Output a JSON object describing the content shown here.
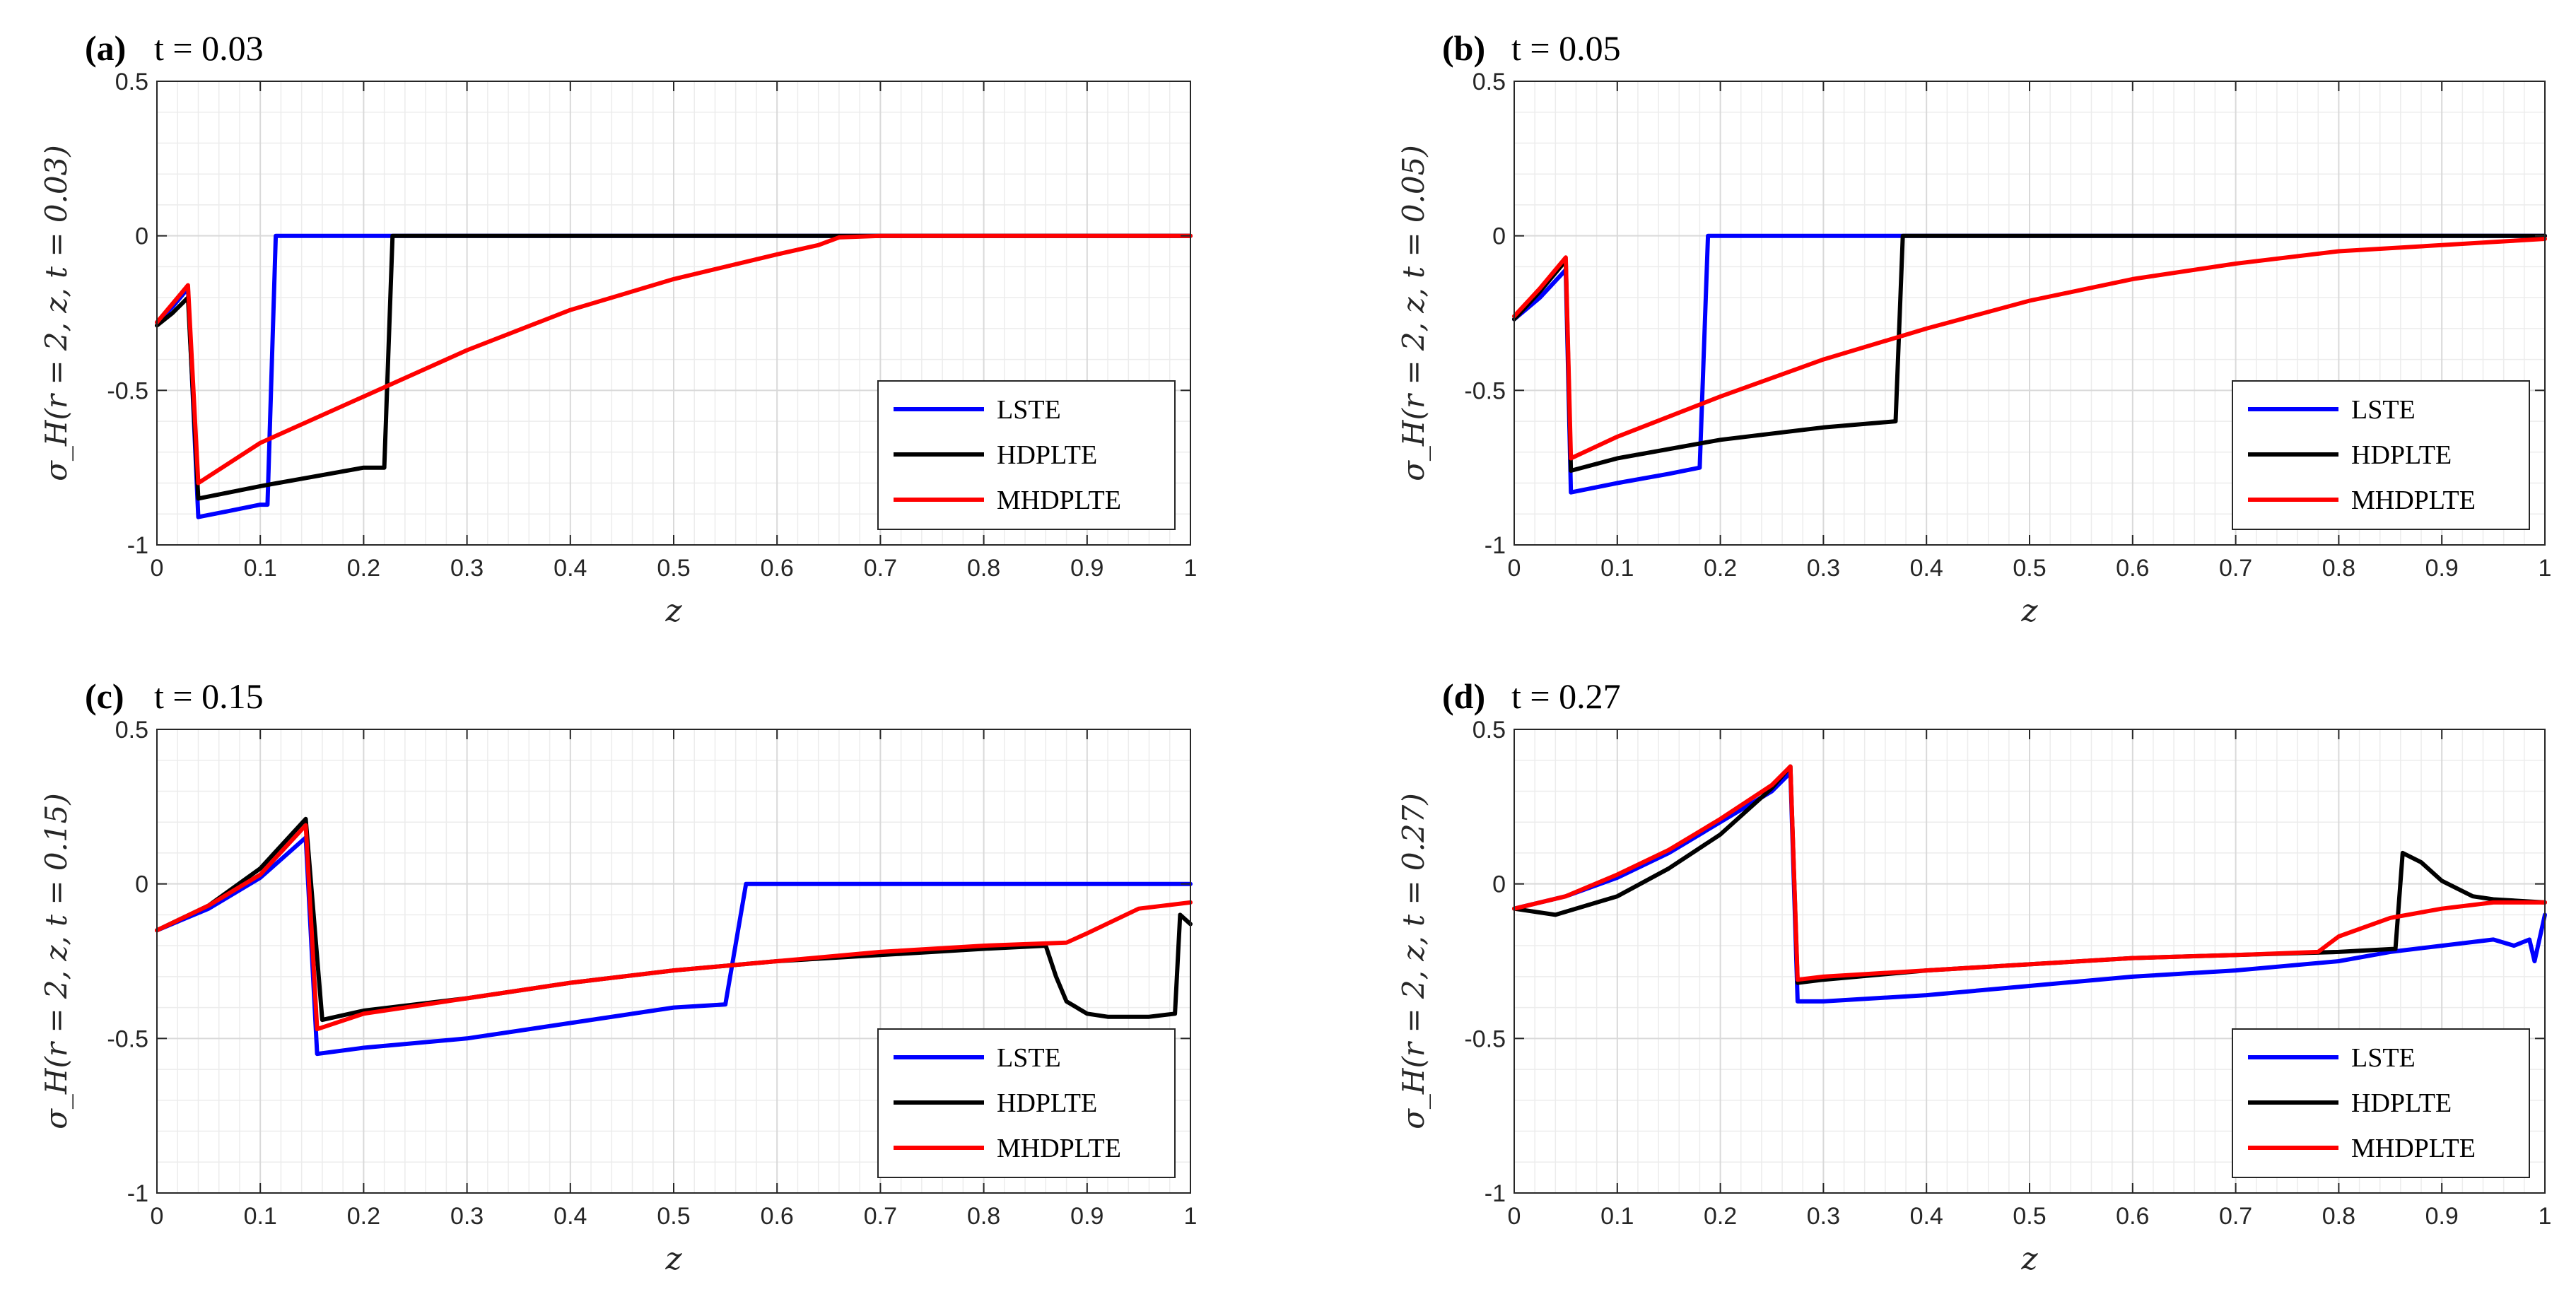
{
  "chart_data": [
    {
      "type": "line",
      "panel": "(a)",
      "title": "t = 0.03",
      "xlabel": "z",
      "ylabel": "σ_H(r = 2, z, t = 0.03)",
      "xlim": [
        0,
        1
      ],
      "ylim": [
        -1,
        0.5
      ],
      "xticks": [
        "0",
        "0.1",
        "0.2",
        "0.3",
        "0.4",
        "0.5",
        "0.6",
        "0.7",
        "0.8",
        "0.9",
        "1"
      ],
      "yticks": [
        "0.5",
        "0",
        "-0.5",
        "-1"
      ],
      "grid": true,
      "legend": "bottom-right",
      "series": [
        {
          "name": "LSTE",
          "color": "#0000ff",
          "x": [
            0,
            0.015,
            0.03,
            0.04,
            0.07,
            0.1,
            0.107,
            0.115,
            0.2,
            0.4,
            0.6,
            0.8,
            1
          ],
          "y": [
            -0.28,
            -0.23,
            -0.17,
            -0.91,
            -0.89,
            -0.87,
            -0.87,
            0,
            0,
            0,
            0,
            0,
            0
          ]
        },
        {
          "name": "HDPLTE",
          "color": "#000000",
          "x": [
            0,
            0.015,
            0.03,
            0.04,
            0.1,
            0.15,
            0.2,
            0.22,
            0.228,
            0.4,
            0.6,
            0.8,
            1
          ],
          "y": [
            -0.29,
            -0.25,
            -0.2,
            -0.85,
            -0.81,
            -0.78,
            -0.75,
            -0.75,
            0,
            0,
            0,
            0,
            0
          ]
        },
        {
          "name": "MHDPLTE",
          "color": "#ff0000",
          "x": [
            0,
            0.015,
            0.03,
            0.04,
            0.1,
            0.2,
            0.3,
            0.4,
            0.5,
            0.6,
            0.64,
            0.66,
            0.7,
            0.8,
            1
          ],
          "y": [
            -0.28,
            -0.22,
            -0.16,
            -0.8,
            -0.67,
            -0.52,
            -0.37,
            -0.24,
            -0.14,
            -0.06,
            -0.03,
            -0.005,
            0,
            0,
            0
          ]
        }
      ]
    },
    {
      "type": "line",
      "panel": "(b)",
      "title": "t = 0.05",
      "xlabel": "z",
      "ylabel": "σ_H(r = 2, z, t = 0.05)",
      "xlim": [
        0,
        1
      ],
      "ylim": [
        -1,
        0.5
      ],
      "xticks": [
        "0",
        "0.1",
        "0.2",
        "0.3",
        "0.4",
        "0.5",
        "0.6",
        "0.7",
        "0.8",
        "0.9",
        "1"
      ],
      "yticks": [
        "0.5",
        "0",
        "-0.5",
        "-1"
      ],
      "grid": true,
      "legend": "bottom-right",
      "series": [
        {
          "name": "LSTE",
          "color": "#0000ff",
          "x": [
            0,
            0.025,
            0.05,
            0.055,
            0.1,
            0.15,
            0.18,
            0.188,
            0.2,
            0.4,
            0.6,
            0.8,
            1
          ],
          "y": [
            -0.27,
            -0.2,
            -0.11,
            -0.83,
            -0.8,
            -0.77,
            -0.75,
            0,
            0,
            0,
            0,
            0,
            0
          ]
        },
        {
          "name": "HDPLTE",
          "color": "#000000",
          "x": [
            0,
            0.025,
            0.05,
            0.055,
            0.1,
            0.2,
            0.3,
            0.37,
            0.377,
            0.4,
            0.6,
            0.8,
            1
          ],
          "y": [
            -0.27,
            -0.18,
            -0.08,
            -0.76,
            -0.72,
            -0.66,
            -0.62,
            -0.6,
            0,
            0,
            0,
            0,
            0
          ]
        },
        {
          "name": "MHDPLTE",
          "color": "#ff0000",
          "x": [
            0,
            0.025,
            0.05,
            0.055,
            0.1,
            0.2,
            0.3,
            0.4,
            0.5,
            0.6,
            0.7,
            0.8,
            0.9,
            0.95,
            1
          ],
          "y": [
            -0.26,
            -0.17,
            -0.07,
            -0.72,
            -0.65,
            -0.52,
            -0.4,
            -0.3,
            -0.21,
            -0.14,
            -0.09,
            -0.05,
            -0.03,
            -0.02,
            -0.01
          ]
        }
      ]
    },
    {
      "type": "line",
      "panel": "(c)",
      "title": "t = 0.15",
      "xlabel": "z",
      "ylabel": "σ_H(r = 2, z, t = 0.15)",
      "xlim": [
        0,
        1
      ],
      "ylim": [
        -1,
        0.5
      ],
      "xticks": [
        "0",
        "0.1",
        "0.2",
        "0.3",
        "0.4",
        "0.5",
        "0.6",
        "0.7",
        "0.8",
        "0.9",
        "1"
      ],
      "yticks": [
        "0.5",
        "0",
        "-0.5",
        "-1"
      ],
      "grid": true,
      "legend": "bottom-right",
      "series": [
        {
          "name": "LSTE",
          "color": "#0000ff",
          "x": [
            0,
            0.05,
            0.1,
            0.144,
            0.155,
            0.2,
            0.3,
            0.4,
            0.5,
            0.55,
            0.57,
            0.6,
            0.8,
            1
          ],
          "y": [
            -0.15,
            -0.08,
            0.02,
            0.15,
            -0.55,
            -0.53,
            -0.5,
            -0.45,
            -0.4,
            -0.39,
            0,
            0,
            0,
            0
          ]
        },
        {
          "name": "HDPLTE",
          "color": "#000000",
          "x": [
            0,
            0.05,
            0.1,
            0.144,
            0.16,
            0.2,
            0.3,
            0.4,
            0.5,
            0.6,
            0.7,
            0.8,
            0.86,
            0.87,
            0.88,
            0.9,
            0.92,
            0.96,
            0.985,
            0.99,
            1
          ],
          "y": [
            -0.15,
            -0.07,
            0.05,
            0.21,
            -0.44,
            -0.41,
            -0.37,
            -0.32,
            -0.28,
            -0.25,
            -0.23,
            -0.21,
            -0.2,
            -0.3,
            -0.38,
            -0.42,
            -0.43,
            -0.43,
            -0.42,
            -0.1,
            -0.13
          ]
        },
        {
          "name": "MHDPLTE",
          "color": "#ff0000",
          "x": [
            0,
            0.05,
            0.1,
            0.144,
            0.155,
            0.2,
            0.3,
            0.4,
            0.5,
            0.6,
            0.7,
            0.8,
            0.88,
            0.9,
            0.95,
            1
          ],
          "y": [
            -0.15,
            -0.07,
            0.03,
            0.19,
            -0.47,
            -0.42,
            -0.37,
            -0.32,
            -0.28,
            -0.25,
            -0.22,
            -0.2,
            -0.19,
            -0.16,
            -0.08,
            -0.06
          ]
        }
      ]
    },
    {
      "type": "line",
      "panel": "(d)",
      "title": "t = 0.27",
      "xlabel": "z",
      "ylabel": "σ_H(r = 2, z, t = 0.27)",
      "xlim": [
        0,
        1
      ],
      "ylim": [
        -1,
        0.5
      ],
      "xticks": [
        "0",
        "0.1",
        "0.2",
        "0.3",
        "0.4",
        "0.5",
        "0.6",
        "0.7",
        "0.8",
        "0.9",
        "1"
      ],
      "yticks": [
        "0.5",
        "0",
        "-0.5",
        "-1"
      ],
      "grid": true,
      "legend": "bottom-right",
      "series": [
        {
          "name": "LSTE",
          "color": "#0000ff",
          "x": [
            0,
            0.05,
            0.1,
            0.15,
            0.2,
            0.25,
            0.268,
            0.275,
            0.3,
            0.4,
            0.5,
            0.6,
            0.7,
            0.8,
            0.85,
            0.9,
            0.95,
            0.97,
            0.985,
            0.99,
            1
          ],
          "y": [
            -0.08,
            -0.04,
            0.02,
            0.1,
            0.2,
            0.3,
            0.36,
            -0.38,
            -0.38,
            -0.36,
            -0.33,
            -0.3,
            -0.28,
            -0.25,
            -0.22,
            -0.2,
            -0.18,
            -0.2,
            -0.18,
            -0.25,
            -0.1
          ]
        },
        {
          "name": "HDPLTE",
          "color": "#000000",
          "x": [
            0,
            0.04,
            0.1,
            0.15,
            0.2,
            0.25,
            0.268,
            0.275,
            0.3,
            0.4,
            0.5,
            0.6,
            0.7,
            0.8,
            0.855,
            0.862,
            0.88,
            0.9,
            0.93,
            0.95,
            1
          ],
          "y": [
            -0.08,
            -0.1,
            -0.04,
            0.05,
            0.16,
            0.31,
            0.38,
            -0.32,
            -0.31,
            -0.28,
            -0.26,
            -0.24,
            -0.23,
            -0.22,
            -0.21,
            0.1,
            0.07,
            0.01,
            -0.04,
            -0.05,
            -0.06
          ]
        },
        {
          "name": "MHDPLTE",
          "color": "#ff0000",
          "x": [
            0,
            0.05,
            0.1,
            0.15,
            0.2,
            0.25,
            0.268,
            0.275,
            0.3,
            0.4,
            0.5,
            0.6,
            0.7,
            0.78,
            0.8,
            0.85,
            0.9,
            0.95,
            1
          ],
          "y": [
            -0.08,
            -0.04,
            0.03,
            0.11,
            0.21,
            0.32,
            0.38,
            -0.31,
            -0.3,
            -0.28,
            -0.26,
            -0.24,
            -0.23,
            -0.22,
            -0.17,
            -0.11,
            -0.08,
            -0.06,
            -0.06
          ]
        }
      ]
    }
  ]
}
